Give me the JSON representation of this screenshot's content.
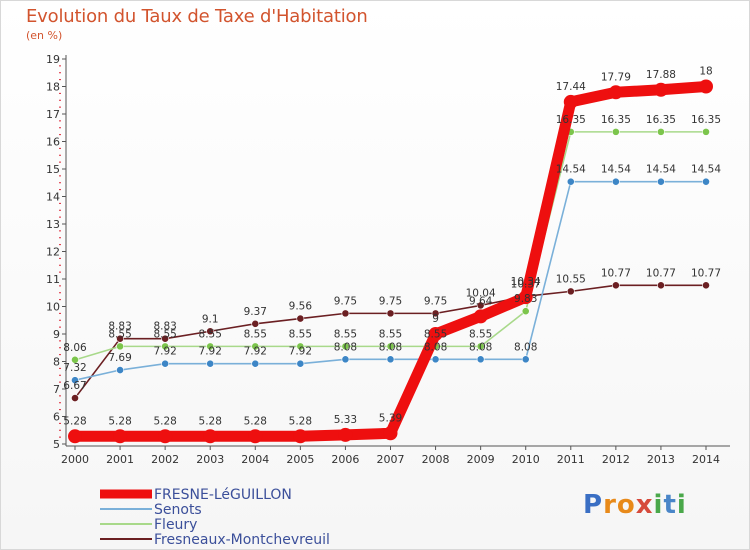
{
  "chart_data": {
    "type": "line",
    "title": "Evolution du Taux de Taxe d'Habitation",
    "ylabel": "(en %)",
    "xlabel": "",
    "ylim": [
      5,
      19
    ],
    "yticks": [
      5,
      6,
      7,
      8,
      9,
      10,
      11,
      12,
      13,
      14,
      15,
      16,
      17,
      18,
      19
    ],
    "x": [
      2000,
      2001,
      2002,
      2003,
      2004,
      2005,
      2006,
      2007,
      2008,
      2009,
      2010,
      2011,
      2012,
      2013,
      2014
    ],
    "series": [
      {
        "name": "Fresneaux-Montchevreuil",
        "color": "#6b1f22",
        "marker": "#6b1f22",
        "values": [
          6.67,
          8.83,
          8.83,
          9.1,
          9.37,
          9.56,
          9.75,
          9.75,
          9.75,
          10.04,
          10.37,
          10.55,
          10.77,
          10.77,
          10.77
        ],
        "labels": [
          "6.67",
          "8.83",
          "8.83",
          "9.1",
          "9.37",
          "9.56",
          "9.75",
          "9.75",
          "9.75",
          "10.04",
          "10.37",
          "10.55",
          "10.77",
          "10.77",
          "10.77"
        ]
      },
      {
        "name": "Fleury",
        "color": "#a8d98a",
        "marker": "#7cc54c",
        "values": [
          8.06,
          8.55,
          8.55,
          8.55,
          8.55,
          8.55,
          8.55,
          8.55,
          8.55,
          8.55,
          9.83,
          16.35,
          16.35,
          16.35,
          16.35
        ],
        "labels": [
          "8.06",
          "8.55",
          "8.55",
          "8.55",
          "8.55",
          "8.55",
          "8.55",
          "8.55",
          "8.55",
          "8.55",
          "9.83",
          "16.35",
          "16.35",
          "16.35",
          "16.35"
        ]
      },
      {
        "name": "Senots",
        "color": "#7ab0d9",
        "marker": "#3d86c6",
        "values": [
          7.32,
          7.69,
          7.92,
          7.92,
          7.92,
          7.92,
          8.08,
          8.08,
          8.08,
          8.08,
          8.08,
          14.54,
          14.54,
          14.54,
          14.54
        ],
        "labels": [
          "7.32",
          "7.69",
          "7.92",
          "7.92",
          "7.92",
          "7.92",
          "8.08",
          "8.08",
          "8.08",
          "8.08",
          "8.08",
          "14.54",
          "14.54",
          "14.54",
          "14.54"
        ]
      },
      {
        "name": "FRESNE-LéGUILLON",
        "color": "#ee0f0f",
        "marker": "#ee0f0f",
        "values": [
          5.28,
          5.28,
          5.28,
          5.28,
          5.28,
          5.28,
          5.33,
          5.39,
          9,
          9.64,
          10.34,
          17.44,
          17.79,
          17.88,
          18
        ],
        "labels": [
          "5.28",
          "5.28",
          "5.28",
          "5.28",
          "5.28",
          "5.28",
          "5.33",
          "5.39",
          "9",
          "9.64",
          "10.34",
          "17.44",
          "17.79",
          "17.88",
          "18"
        ]
      }
    ],
    "legend": {
      "placement": "bottom-left",
      "order": [
        "FRESNE-LéGUILLON",
        "Senots",
        "Fleury",
        "Fresneaux-Montchevreuil"
      ]
    },
    "grid": false
  },
  "logo": {
    "letters": [
      "P",
      "r",
      "o",
      "x",
      "i",
      "t",
      "i"
    ]
  }
}
